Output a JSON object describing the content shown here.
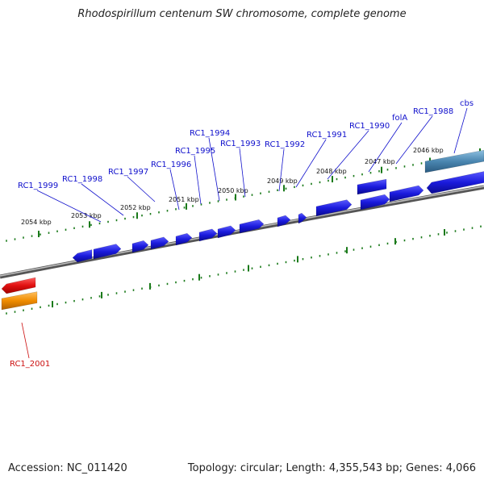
{
  "title": "Rhodospirillum centenum SW chromosome, complete genome",
  "footer": {
    "accession": "Accession: NC_011420",
    "topology": "Topology: circular; Length: 4,355,543 bp; Genes: 4,066"
  },
  "colors": {
    "gene": "#1a1adc",
    "gene_label": "#1010cc",
    "rna_red": "#e01010",
    "rna_orange": "#f08c00",
    "misc_feature": "#4a86b0",
    "backbone": "#8a8a8a",
    "tick": "#1a7a1a",
    "red_label": "#cc1010"
  },
  "kbp_marks": [
    "2054 kbp",
    "2053 kbp",
    "2052 kbp",
    "2051 kbp",
    "2050 kbp",
    "2049 kbp",
    "2048 kbp",
    "2047 kbp",
    "2046 kbp"
  ],
  "gene_labels": [
    "RC1_1999",
    "RC1_1998",
    "RC1_1997",
    "RC1_1996",
    "RC1_1995",
    "RC1_1994",
    "RC1_1993",
    "RC1_1992",
    "RC1_1991",
    "RC1_1990",
    "folA",
    "RC1_1988",
    "cbs"
  ],
  "lower_labels": [
    "RC1_2001"
  ]
}
